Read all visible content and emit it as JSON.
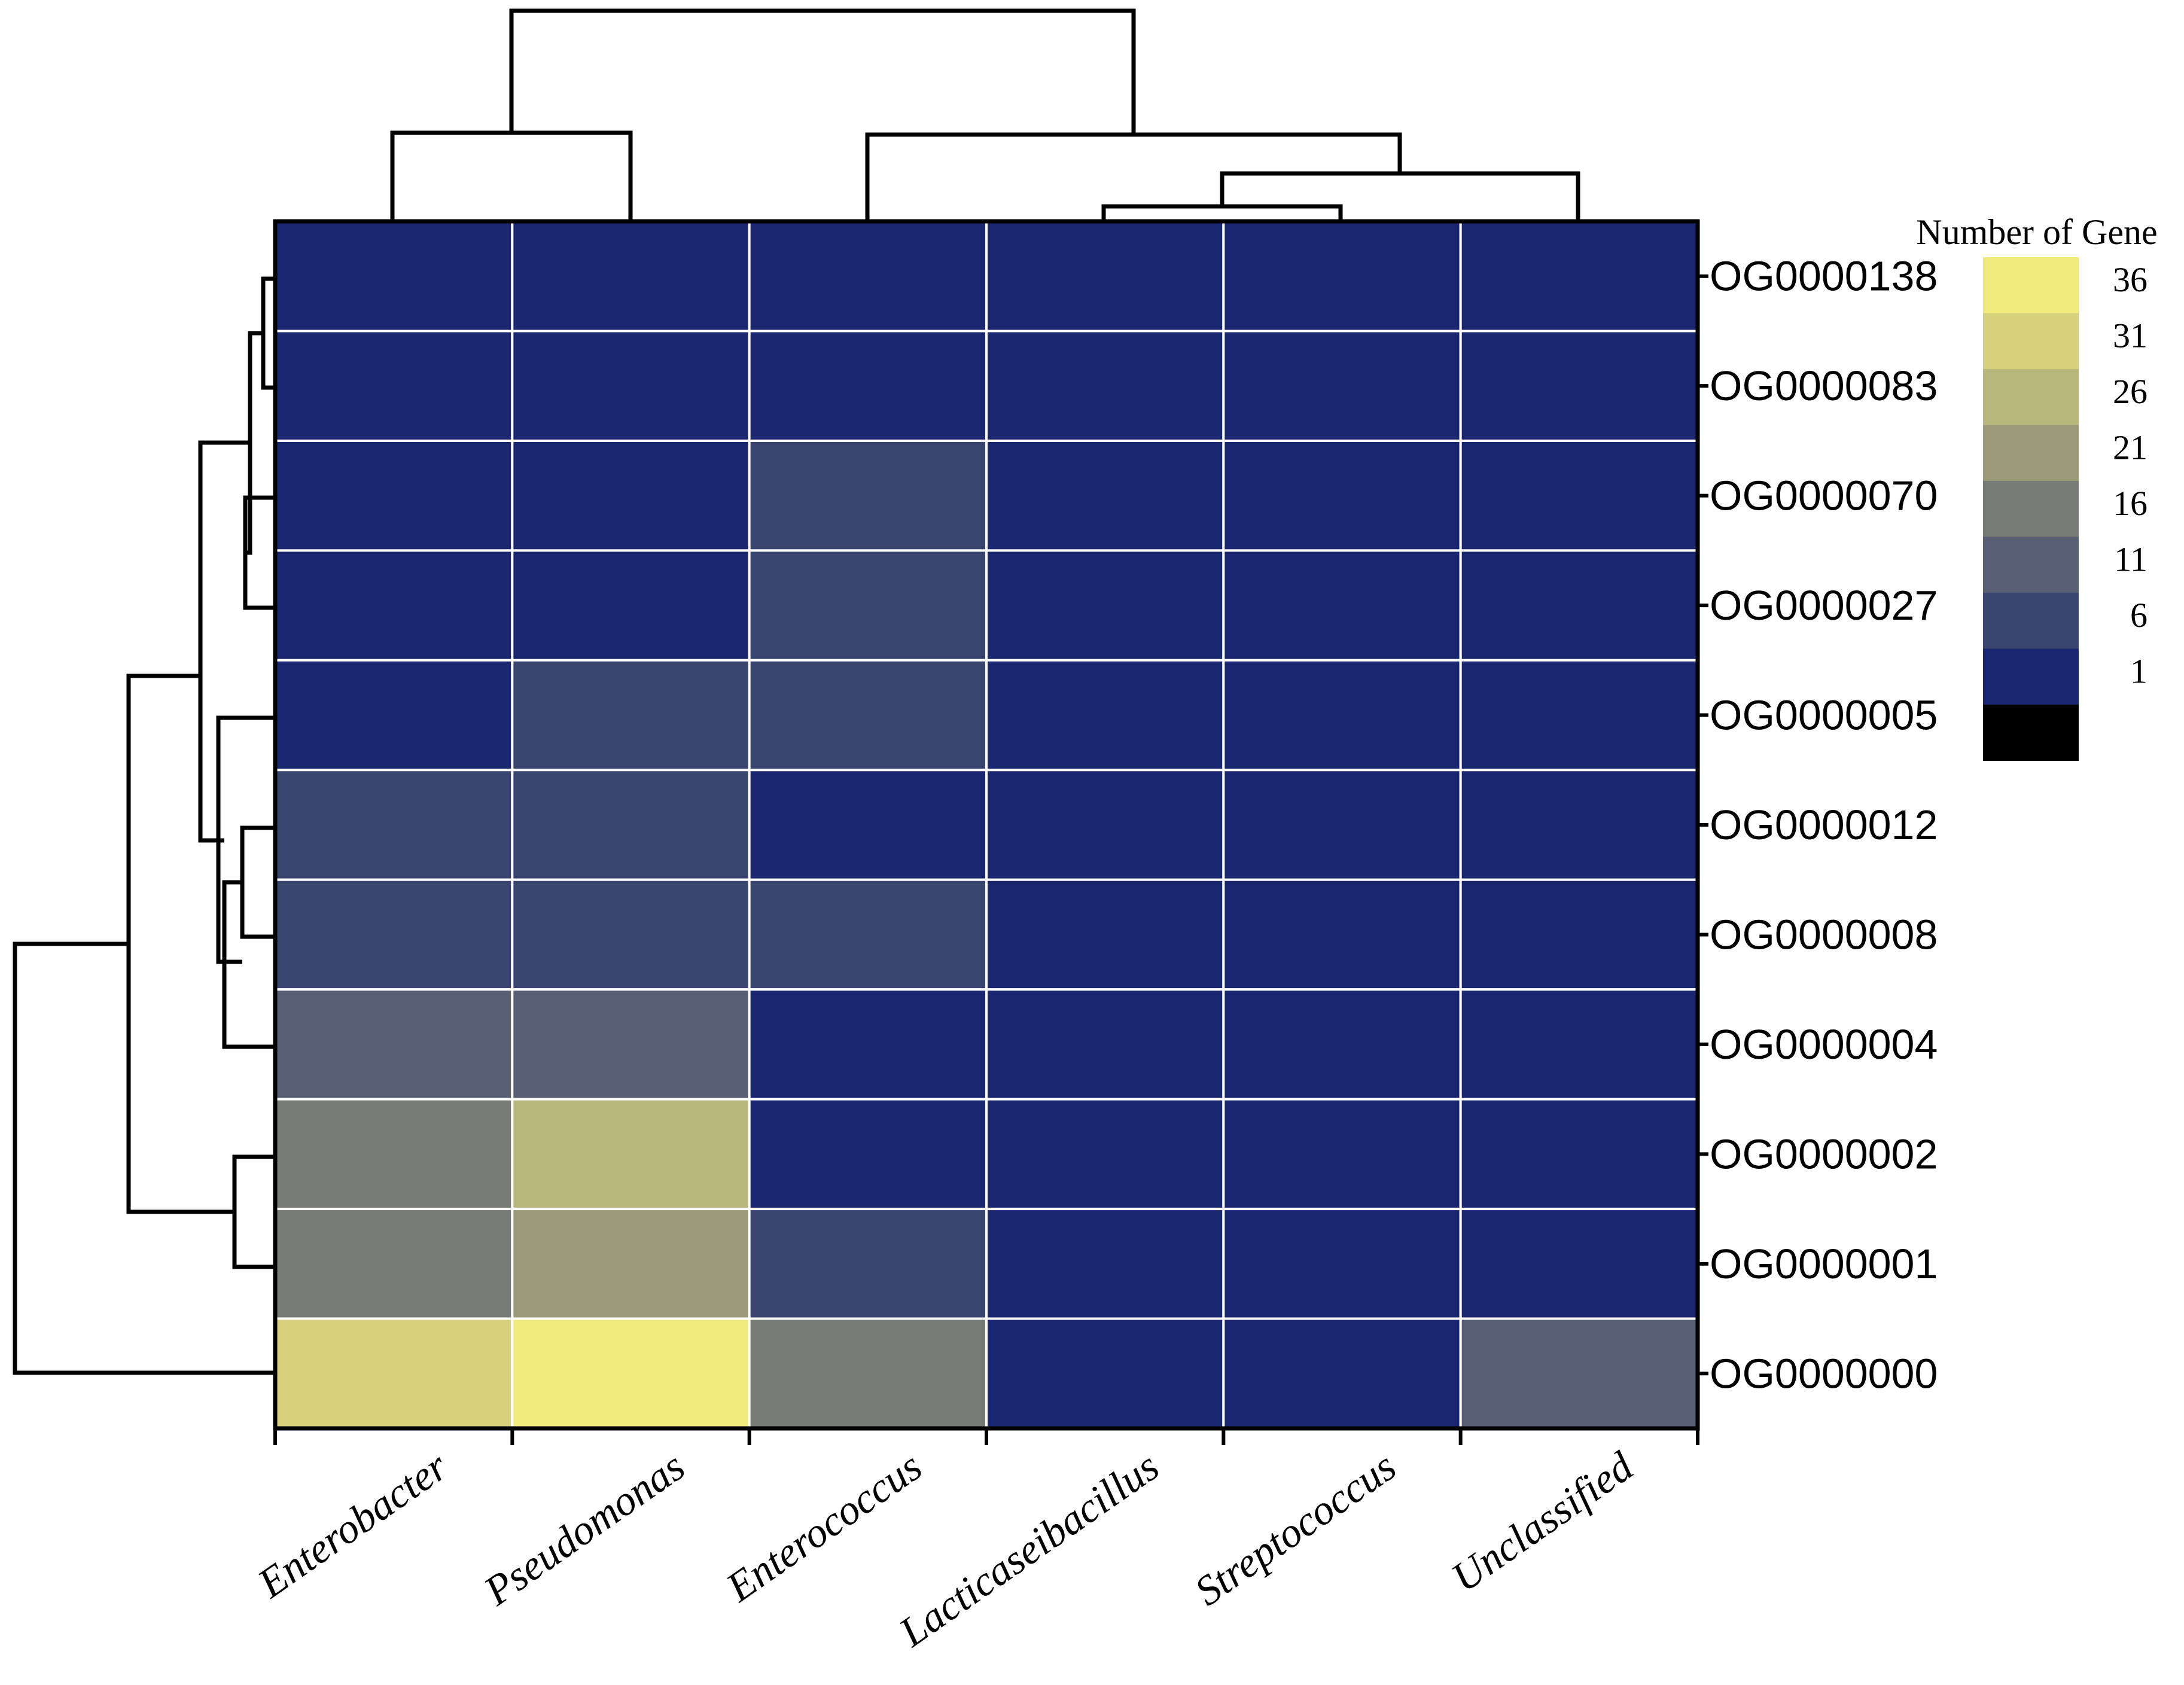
{
  "chart_data": {
    "type": "heatmap",
    "title": "",
    "rows": [
      "OG0000138",
      "OG0000083",
      "OG0000070",
      "OG0000027",
      "OG0000005",
      "OG0000012",
      "OG0000008",
      "OG0000004",
      "OG0000002",
      "OG0000001",
      "OG0000000"
    ],
    "columns": [
      "Enterobacter",
      "Pseudomonas",
      "Enterococcus",
      "Lacticaseibacillus",
      "Streptococcus",
      "Unclassified"
    ],
    "values": [
      [
        1,
        1,
        1,
        1,
        1,
        1
      ],
      [
        1,
        1,
        1,
        1,
        1,
        1
      ],
      [
        1,
        1,
        6,
        1,
        1,
        1
      ],
      [
        1,
        1,
        6,
        1,
        1,
        1
      ],
      [
        1,
        6,
        6,
        1,
        1,
        1
      ],
      [
        6,
        6,
        1,
        1,
        1,
        1
      ],
      [
        6,
        6,
        6,
        1,
        1,
        1
      ],
      [
        11,
        11,
        1,
        1,
        1,
        1
      ],
      [
        16,
        26,
        1,
        1,
        1,
        1
      ],
      [
        16,
        21,
        6,
        1,
        1,
        1
      ],
      [
        31,
        36,
        16,
        1,
        1,
        11
      ]
    ],
    "legend": {
      "title": "Number of Gene",
      "ticks": [
        "36",
        "31",
        "26",
        "21",
        "16",
        "11",
        "6",
        "1"
      ],
      "colors": [
        "#f3ea7c",
        "#d6d17c",
        "#b7b77c",
        "#9a9a79",
        "#767a74",
        "#585f74",
        "#39446f",
        "#1b2670",
        "#000000"
      ],
      "placement": "top-right"
    },
    "row_dendrogram": "left",
    "column_dendrogram": "top",
    "colormap": [
      {
        "value": 1,
        "color": "#1b2670"
      },
      {
        "value": 6,
        "color": "#39446f"
      },
      {
        "value": 11,
        "color": "#585f74"
      },
      {
        "value": 16,
        "color": "#767a74"
      },
      {
        "value": 21,
        "color": "#9a9a79"
      },
      {
        "value": 26,
        "color": "#b7b77c"
      },
      {
        "value": 31,
        "color": "#d6d17c"
      },
      {
        "value": 36,
        "color": "#f3ea7c"
      }
    ]
  }
}
